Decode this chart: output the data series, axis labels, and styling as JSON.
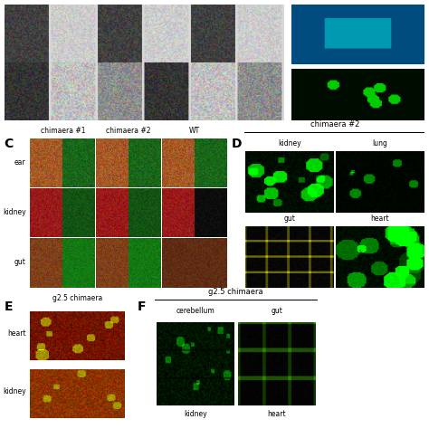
{
  "panel_C_label": "C",
  "panel_D_label": "D",
  "panel_E_label": "E",
  "panel_F_label": "F",
  "panel_C_col_labels": [
    "chimaera #1",
    "chimaera #2",
    "WT"
  ],
  "panel_C_row_labels": [
    "ear",
    "kidney",
    "gut"
  ],
  "panel_D_title": "chimaera #2",
  "panel_D_labels": [
    [
      "kidney",
      "lung"
    ],
    [
      "gut",
      "heart"
    ]
  ],
  "panel_E_title": "g2.5 chimaera",
  "panel_E_row_labels": [
    "heart",
    "kidney"
  ],
  "panel_F_title": "g2.5 chimaera",
  "panel_F_col_labels": [
    "cerebellum",
    "gut"
  ],
  "panel_F_bottom_labels": [
    "kidney",
    "heart"
  ],
  "bg_color": "#ffffff"
}
